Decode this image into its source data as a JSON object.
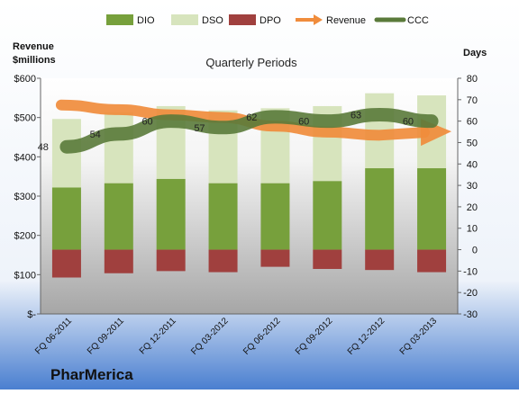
{
  "chart_data": {
    "type": "bar",
    "title": "Quarterly Periods",
    "company": "PharMerica",
    "y_left_label_line1": "Revenue",
    "y_left_label_line2": "$millions",
    "y_right_label": "Days",
    "categories": [
      "FQ 06-2011",
      "FQ 09-2011",
      "FQ 12-2011",
      "FQ 03-2012",
      "FQ 06-2012",
      "FQ 09-2012",
      "FQ 12-2012",
      "FQ 03-2013"
    ],
    "y_left_ticks": [
      "$600",
      "$500",
      "$400",
      "$300",
      "$200",
      "$100",
      "$-"
    ],
    "y_left_range": [
      0,
      600
    ],
    "y_right_range": [
      -30,
      80
    ],
    "y_right_ticks": [
      80,
      70,
      60,
      50,
      40,
      30,
      20,
      10,
      0,
      -10,
      -20,
      -30
    ],
    "legend": [
      {
        "name": "DIO",
        "color": "#77a03c",
        "kind": "bar"
      },
      {
        "name": "DSO",
        "color": "#d7e4bd",
        "kind": "bar"
      },
      {
        "name": "DPO",
        "color": "#a0403e",
        "kind": "bar"
      },
      {
        "name": "Revenue",
        "color": "#f08c3c",
        "kind": "arrow"
      },
      {
        "name": "CCC",
        "color": "#5a7a3a",
        "kind": "line"
      }
    ],
    "series": [
      {
        "name": "DIO",
        "values": [
          29,
          31,
          33,
          31,
          31,
          32,
          38,
          38
        ]
      },
      {
        "name": "DSO",
        "values": [
          32,
          33,
          34,
          34,
          35,
          35,
          35,
          34
        ]
      },
      {
        "name": "DPO",
        "values": [
          -13,
          -11,
          -10,
          -10.5,
          -8,
          -9,
          -9.5,
          -10.5
        ]
      },
      {
        "name": "CCC",
        "values": [
          48,
          54,
          60,
          57,
          62,
          60,
          63,
          60
        ]
      }
    ],
    "ccc_labels": [
      "48",
      "54",
      "60",
      "57",
      "62",
      "60",
      "63",
      "60"
    ],
    "revenue_trend_approx": [
      532,
      520,
      507,
      500,
      478,
      463,
      455,
      460
    ]
  }
}
